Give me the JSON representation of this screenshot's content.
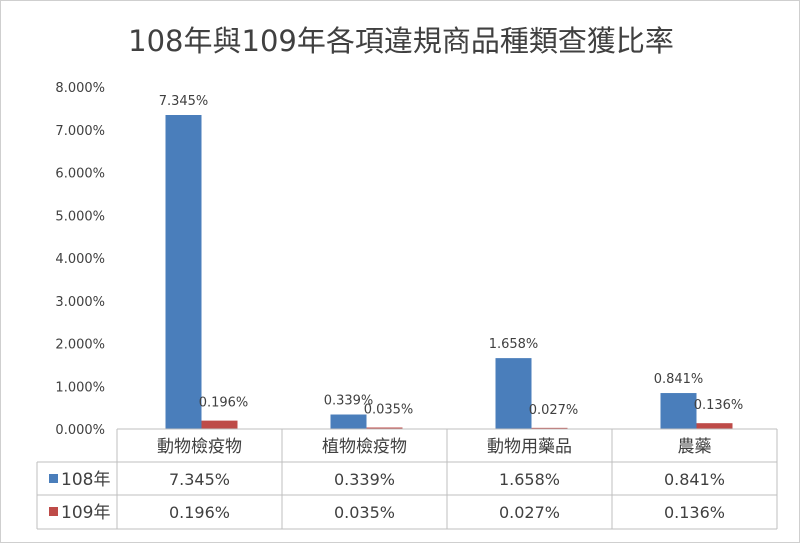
{
  "chart_data": {
    "type": "bar",
    "title": "108年與109年各項違規商品種類查獲比率",
    "categories": [
      "動物檢疫物",
      "植物檢疫物",
      "動物用藥品",
      "農藥"
    ],
    "series": [
      {
        "name": "108年",
        "values": [
          7.345,
          0.339,
          1.658,
          0.841
        ],
        "labels": [
          "7.345%",
          "0.339%",
          "1.658%",
          "0.841%"
        ],
        "color": "#4a7ebb"
      },
      {
        "name": "109年",
        "values": [
          0.196,
          0.035,
          0.027,
          0.136
        ],
        "labels": [
          "0.196%",
          "0.035%",
          "0.027%",
          "0.136%"
        ],
        "color": "#be4b48"
      }
    ],
    "ylim": [
      0,
      8
    ],
    "yticks": [
      "0.000%",
      "1.000%",
      "2.000%",
      "3.000%",
      "4.000%",
      "5.000%",
      "6.000%",
      "7.000%",
      "8.000%"
    ],
    "grid": false,
    "data_table": true
  }
}
